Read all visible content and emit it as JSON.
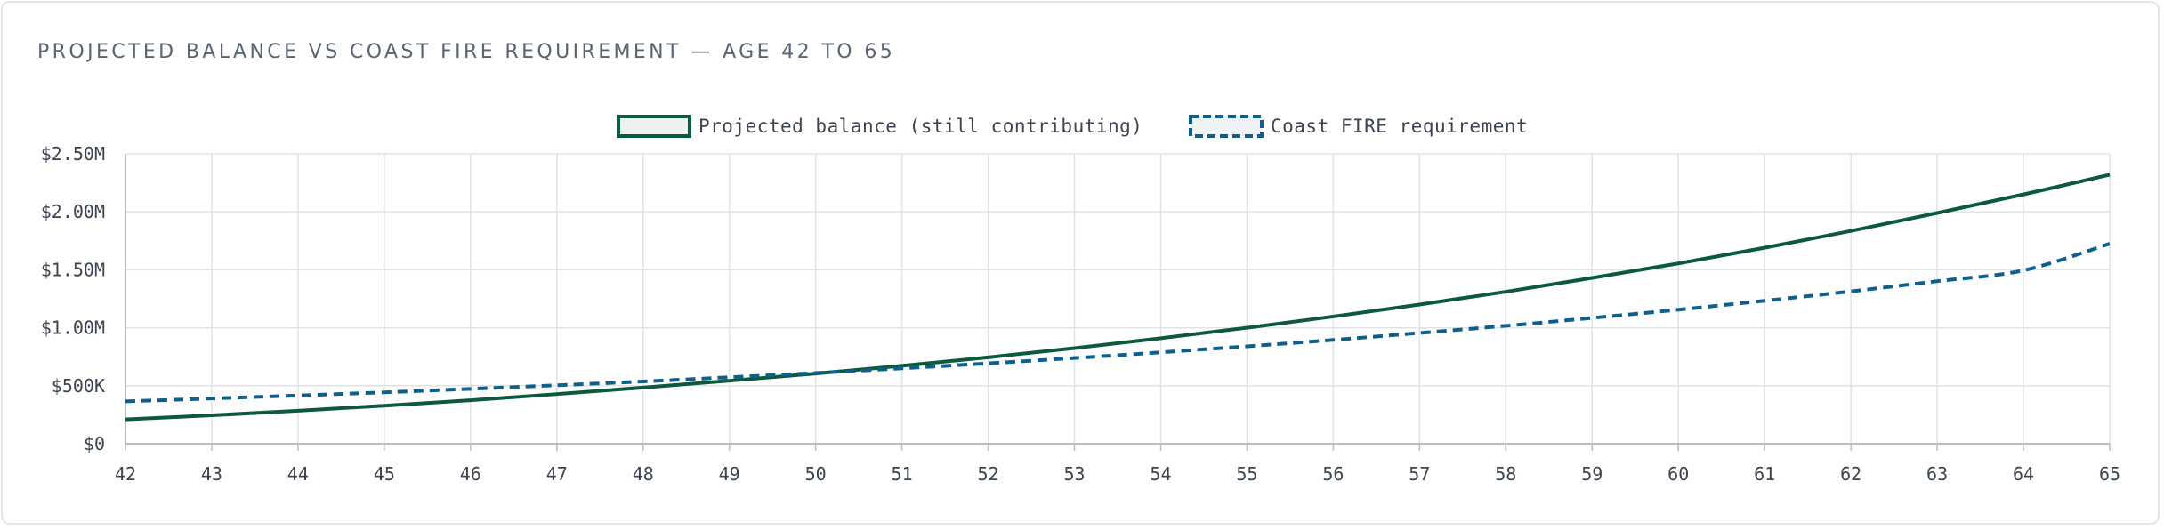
{
  "title": "PROJECTED BALANCE VS COAST FIRE REQUIREMENT — AGE 42 TO 65",
  "chart_data": {
    "type": "line",
    "x": [
      42,
      43,
      44,
      45,
      46,
      47,
      48,
      49,
      50,
      51,
      52,
      53,
      54,
      55,
      56,
      57,
      58,
      59,
      60,
      61,
      62,
      63,
      64,
      65
    ],
    "x_tick_labels": [
      "42",
      "43",
      "44",
      "45",
      "46",
      "47",
      "48",
      "49",
      "50",
      "51",
      "52",
      "53",
      "54",
      "55",
      "56",
      "57",
      "58",
      "59",
      "60",
      "61",
      "62",
      "63",
      "64",
      "65"
    ],
    "xlim": [
      42,
      65
    ],
    "ylim": [
      0,
      2500000
    ],
    "y_ticks": [
      0,
      500000,
      1000000,
      1500000,
      2000000,
      2500000
    ],
    "y_tick_labels": [
      "$0",
      "$500K",
      "$1.00M",
      "$1.50M",
      "$2.00M",
      "$2.50M"
    ],
    "grid": true,
    "legend_position": "top-center",
    "series": [
      {
        "name": "Projected balance (still contributing)",
        "color": "#0b5a3c",
        "style": "solid",
        "values": [
          210000,
          245000,
          285000,
          328000,
          375000,
          428000,
          484000,
          543000,
          605000,
          672000,
          745000,
          824000,
          910000,
          1000000,
          1097000,
          1200000,
          1311000,
          1430000,
          1555000,
          1690000,
          1835000,
          1990000,
          2150000,
          2320000
        ]
      },
      {
        "name": "Coast FIRE requirement",
        "color": "#0d5f8e",
        "style": "dashed",
        "values": [
          365000,
          390000,
          416000,
          443000,
          473000,
          504000,
          537000,
          573000,
          610000,
          650000,
          693000,
          739000,
          788000,
          840000,
          895000,
          955000,
          1017000,
          1085000,
          1156000,
          1233000,
          1314000,
          1402000,
          1495000,
          1725000
        ]
      }
    ]
  }
}
